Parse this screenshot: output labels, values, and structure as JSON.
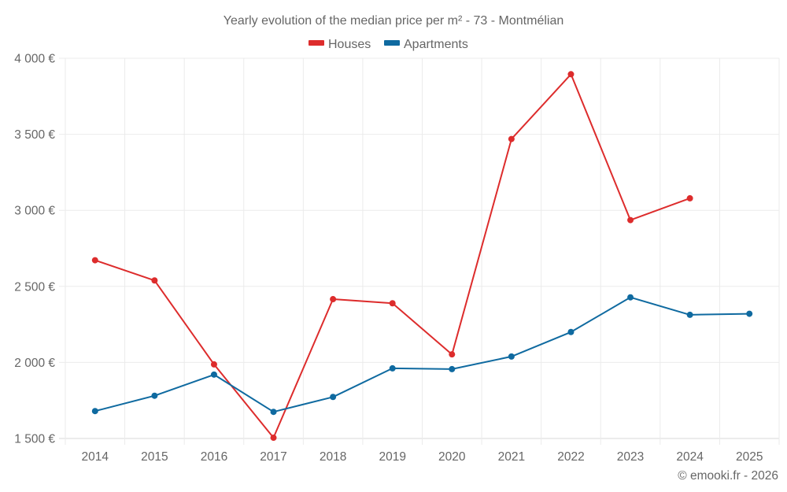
{
  "chart_data": {
    "type": "line",
    "title": "Yearly evolution of the median price per m² - 73 - Montmélian",
    "xlabel": "",
    "ylabel": "",
    "categories": [
      "2014",
      "2015",
      "2016",
      "2017",
      "2018",
      "2019",
      "2020",
      "2021",
      "2022",
      "2023",
      "2024",
      "2025"
    ],
    "ylim": [
      1500,
      4000
    ],
    "yticks": [
      1500,
      2000,
      2500,
      3000,
      3500,
      4000
    ],
    "ytick_labels": [
      "1 500 €",
      "2 000 €",
      "2 500 €",
      "3 000 €",
      "3 500 €",
      "4 000 €"
    ],
    "grid": true,
    "legend_position": "top-center",
    "series": [
      {
        "name": "Houses",
        "color": "#dd2c2c",
        "values": [
          2672,
          2539,
          1987,
          1505,
          2416,
          2389,
          2053,
          3469,
          3895,
          2936,
          3079,
          null
        ]
      },
      {
        "name": "Apartments",
        "color": "#0f6aa0",
        "values": [
          1680,
          1781,
          1920,
          1675,
          1773,
          1961,
          1956,
          2039,
          2200,
          2428,
          2313,
          2320
        ]
      }
    ],
    "credit": "© emooki.fr - 2026"
  }
}
